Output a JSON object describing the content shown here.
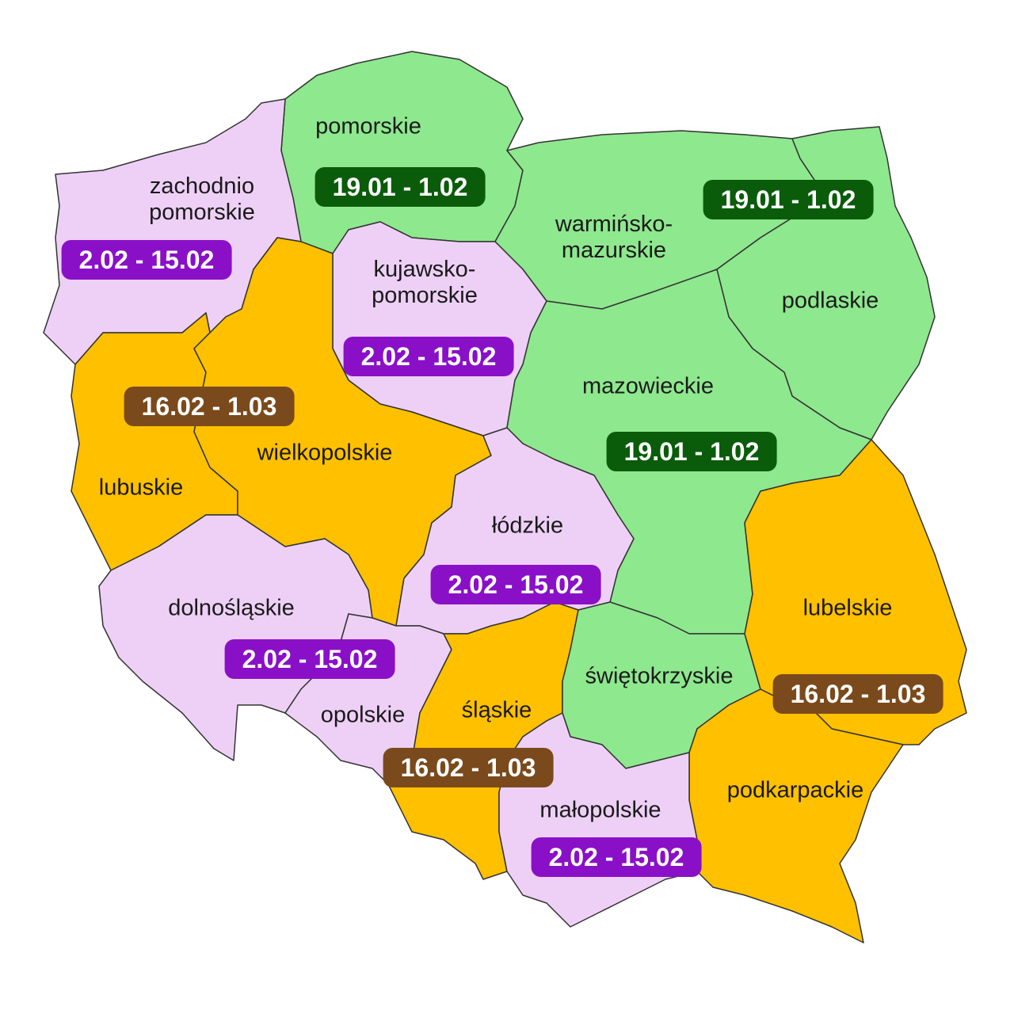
{
  "colors": {
    "group_green": "#8EE88E",
    "group_pink": "#EED0F6",
    "group_orange": "#FFC000",
    "badge_green": "#0A5C0A",
    "badge_purple": "#8A10C8",
    "badge_brown": "#7A4A1C",
    "border": "#333333"
  },
  "regions": [
    {
      "id": "pomorskie",
      "label": "pomorskie",
      "dates": "19.01 - 1.02",
      "group": "green"
    },
    {
      "id": "zachodniopomorskie",
      "label": "zachodnio\npomorskie",
      "dates": "2.02 - 15.02",
      "group": "pink"
    },
    {
      "id": "warminsko-mazurskie",
      "label": "warmińsko-\nmazurskie",
      "dates": "19.01 - 1.02",
      "group": "green"
    },
    {
      "id": "podlaskie",
      "label": "podlaskie",
      "dates": "",
      "group": "green"
    },
    {
      "id": "kujawsko-pomorskie",
      "label": "kujawsko-\npomorskie",
      "dates": "2.02 - 15.02",
      "group": "pink"
    },
    {
      "id": "lubuskie",
      "label": "lubuskie",
      "dates": "16.02 - 1.03",
      "group": "orange"
    },
    {
      "id": "wielkopolskie",
      "label": "wielkopolskie",
      "dates": "",
      "group": "orange"
    },
    {
      "id": "mazowieckie",
      "label": "mazowieckie",
      "dates": "19.01 - 1.02",
      "group": "green"
    },
    {
      "id": "lodzkie",
      "label": "łódzkie",
      "dates": "2.02 - 15.02",
      "group": "pink"
    },
    {
      "id": "dolnoslaskie",
      "label": "dolnośląskie",
      "dates": "2.02 - 15.02",
      "group": "pink"
    },
    {
      "id": "opolskie",
      "label": "opolskie",
      "dates": "",
      "group": "pink"
    },
    {
      "id": "slaskie",
      "label": "śląskie",
      "dates": "16.02 - 1.03",
      "group": "orange"
    },
    {
      "id": "swietokrzyskie",
      "label": "świętokrzyskie",
      "dates": "",
      "group": "green"
    },
    {
      "id": "lubelskie",
      "label": "lubelskie",
      "dates": "16.02 - 1.03",
      "group": "orange"
    },
    {
      "id": "podkarpackie",
      "label": "podkarpackie",
      "dates": "",
      "group": "orange"
    },
    {
      "id": "malopolskie",
      "label": "małopolskie",
      "dates": "2.02 - 15.02",
      "group": "pink"
    }
  ]
}
